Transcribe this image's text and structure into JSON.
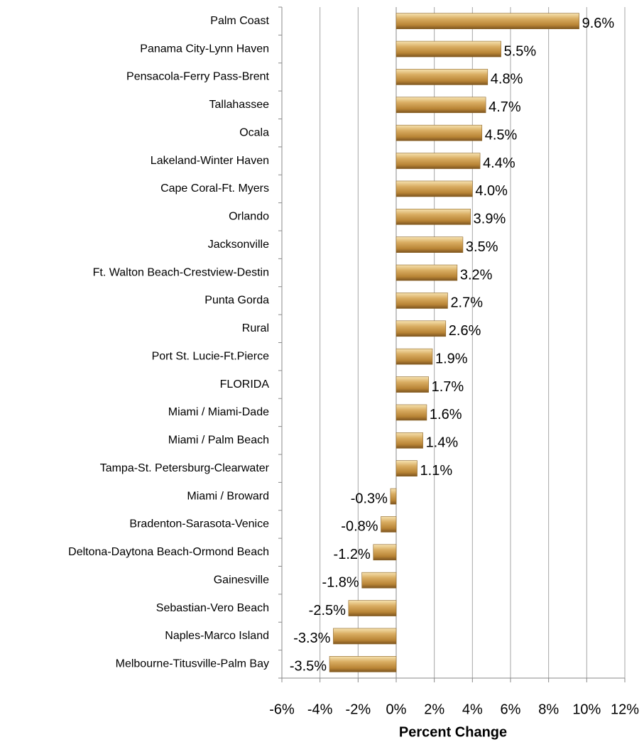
{
  "chart_data": {
    "type": "bar",
    "orientation": "horizontal",
    "x_label": "Percent Change",
    "categories": [
      "Palm Coast",
      "Panama City-Lynn Haven",
      "Pensacola-Ferry Pass-Brent",
      "Tallahassee",
      "Ocala",
      "Lakeland-Winter Haven",
      "Cape Coral-Ft. Myers",
      "Orlando",
      "Jacksonville",
      "Ft. Walton Beach-Crestview-Destin",
      "Punta Gorda",
      "Rural",
      "Port St. Lucie-Ft.Pierce",
      "FLORIDA",
      "Miami / Miami-Dade",
      "Miami / Palm Beach",
      "Tampa-St. Petersburg-Clearwater",
      "Miami / Broward",
      "Bradenton-Sarasota-Venice",
      "Deltona-Daytona Beach-Ormond Beach",
      "Gainesville",
      "Sebastian-Vero Beach",
      "Naples-Marco Island",
      "Melbourne-Titusville-Palm Bay"
    ],
    "values": [
      9.6,
      5.5,
      4.8,
      4.7,
      4.5,
      4.4,
      4.0,
      3.9,
      3.5,
      3.2,
      2.7,
      2.6,
      1.9,
      1.7,
      1.6,
      1.4,
      1.1,
      -0.3,
      -0.8,
      -1.2,
      -1.8,
      -2.5,
      -3.3,
      -3.5
    ],
    "value_labels": [
      "9.6%",
      "5.5%",
      "4.8%",
      "4.7%",
      "4.5%",
      "4.4%",
      "4.0%",
      "3.9%",
      "3.5%",
      "3.2%",
      "2.7%",
      "2.6%",
      "1.9%",
      "1.7%",
      "1.6%",
      "1.4%",
      "1.1%",
      "-0.3%",
      "-0.8%",
      "-1.2%",
      "-1.8%",
      "-2.5%",
      "-3.3%",
      "-3.5%"
    ],
    "color": "#c8953f",
    "xlim": [
      -6,
      12
    ],
    "xticks": [
      {
        "value": -6,
        "label": "-6%"
      },
      {
        "value": -4,
        "label": "-4%"
      },
      {
        "value": -2,
        "label": "-2%"
      },
      {
        "value": 0,
        "label": "0%"
      },
      {
        "value": 2,
        "label": "2%"
      },
      {
        "value": 4,
        "label": "4%"
      },
      {
        "value": 6,
        "label": "6%"
      },
      {
        "value": 8,
        "label": "8%"
      },
      {
        "value": 10,
        "label": "10%"
      },
      {
        "value": 12,
        "label": "12%"
      }
    ],
    "grid": true
  }
}
